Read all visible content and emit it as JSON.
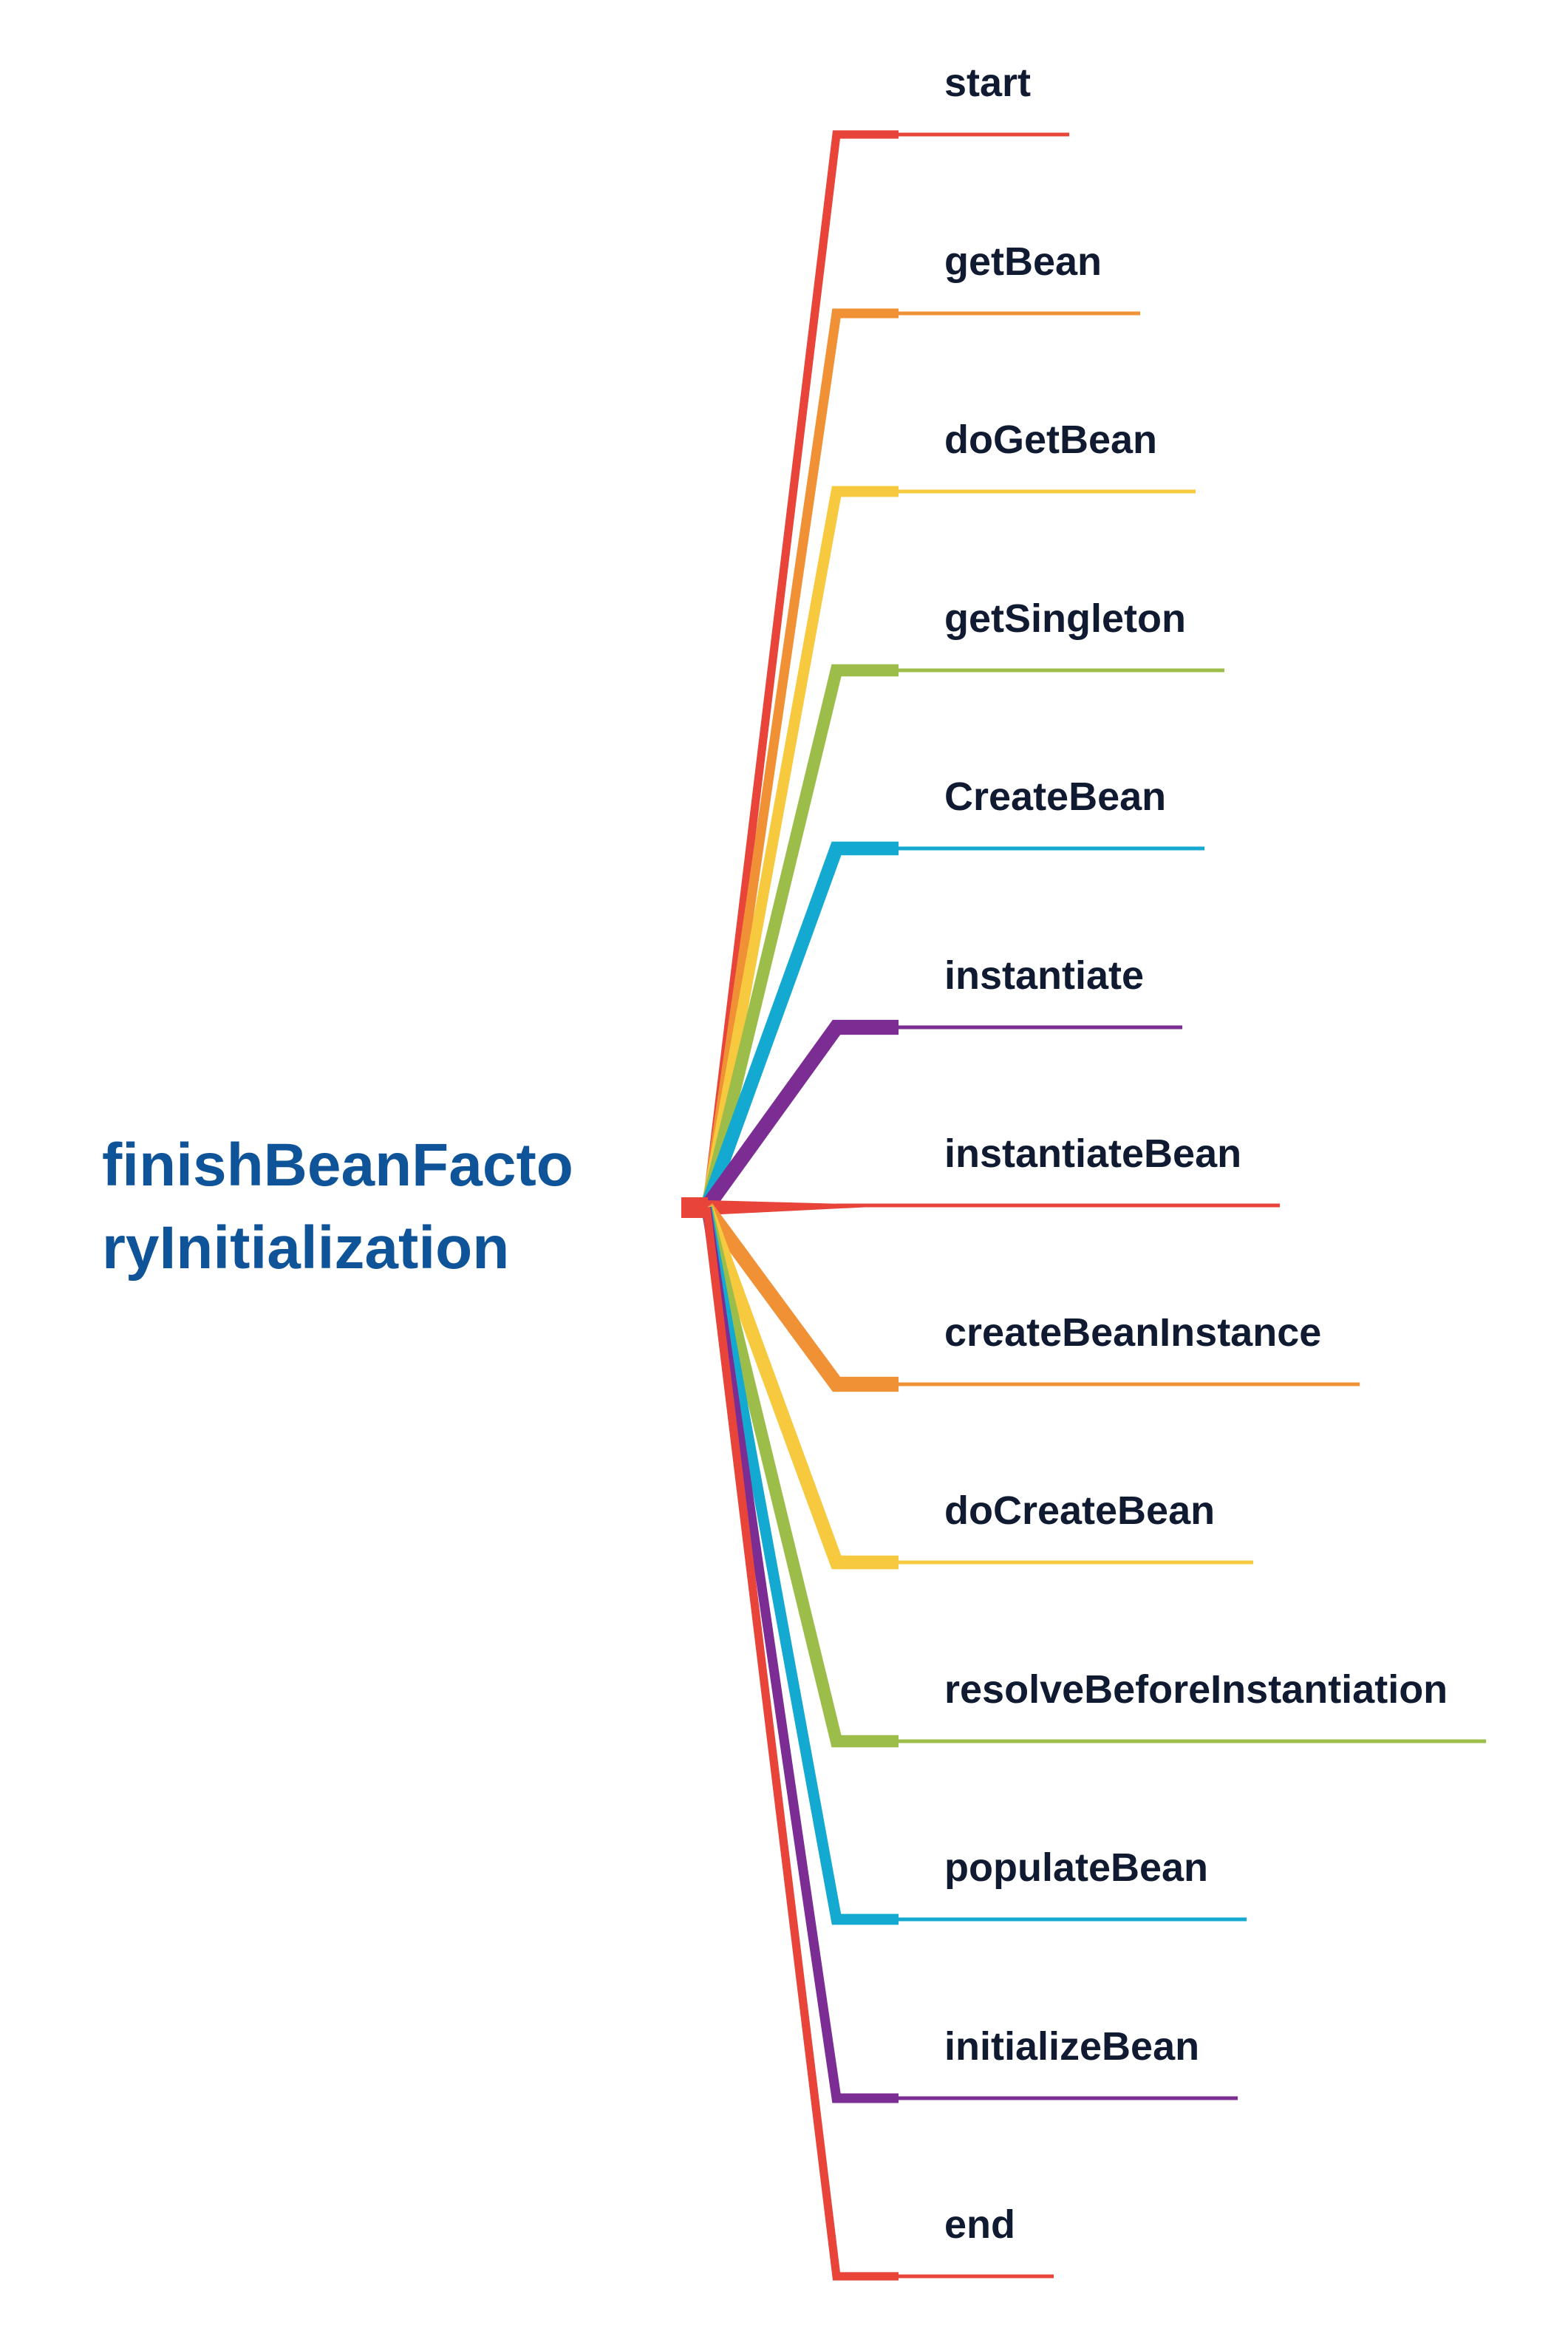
{
  "root": {
    "title_line1": "finishBeanFacto",
    "title_line2": "ryInitialization",
    "color": "#0f5499"
  },
  "branches": [
    {
      "label": "start",
      "color": "#e8443a"
    },
    {
      "label": "getBean",
      "color": "#f09135"
    },
    {
      "label": "doGetBean",
      "color": "#f7c93f"
    },
    {
      "label": "getSingleton",
      "color": "#9dbd4b"
    },
    {
      "label": "CreateBean",
      "color": "#14a9d1"
    },
    {
      "label": "instantiate",
      "color": "#7b2d93"
    },
    {
      "label": "instantiateBean",
      "color": "#e8443a"
    },
    {
      "label": "createBeanInstance",
      "color": "#f09135"
    },
    {
      "label": "doCreateBean",
      "color": "#f7c93f"
    },
    {
      "label": "resolveBeforeInstantiation",
      "color": "#9dbd4b"
    },
    {
      "label": "populateBean",
      "color": "#14a9d1"
    },
    {
      "label": "initializeBean",
      "color": "#7b2d93"
    },
    {
      "label": "end",
      "color": "#e8443a"
    }
  ]
}
